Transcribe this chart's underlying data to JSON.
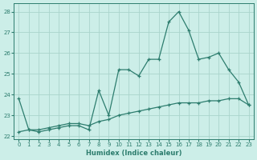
{
  "x": [
    0,
    1,
    2,
    3,
    4,
    5,
    6,
    7,
    8,
    9,
    10,
    11,
    12,
    13,
    14,
    15,
    16,
    17,
    18,
    19,
    20,
    21,
    22,
    23
  ],
  "line1": [
    23.8,
    22.3,
    22.2,
    22.3,
    22.4,
    22.5,
    22.5,
    22.3,
    24.2,
    23.0,
    25.2,
    25.2,
    24.9,
    25.7,
    25.7,
    27.5,
    28.0,
    27.1,
    25.7,
    25.8,
    26.0,
    25.2,
    24.6,
    23.5
  ],
  "line2": [
    22.2,
    22.3,
    22.3,
    22.4,
    22.5,
    22.6,
    22.6,
    22.5,
    22.7,
    22.8,
    23.0,
    23.1,
    23.2,
    23.3,
    23.4,
    23.5,
    23.6,
    23.6,
    23.6,
    23.7,
    23.7,
    23.8,
    23.8,
    23.5
  ],
  "line_color": "#2d7d6e",
  "bg_color": "#cceee8",
  "grid_color": "#aad4cc",
  "xlabel": "Humidex (Indice chaleur)",
  "ylim": [
    21.85,
    28.4
  ],
  "xlim": [
    -0.5,
    23.5
  ],
  "yticks": [
    22,
    23,
    24,
    25,
    26,
    27,
    28
  ],
  "xticks": [
    0,
    1,
    2,
    3,
    4,
    5,
    6,
    7,
    8,
    9,
    10,
    11,
    12,
    13,
    14,
    15,
    16,
    17,
    18,
    19,
    20,
    21,
    22,
    23
  ]
}
